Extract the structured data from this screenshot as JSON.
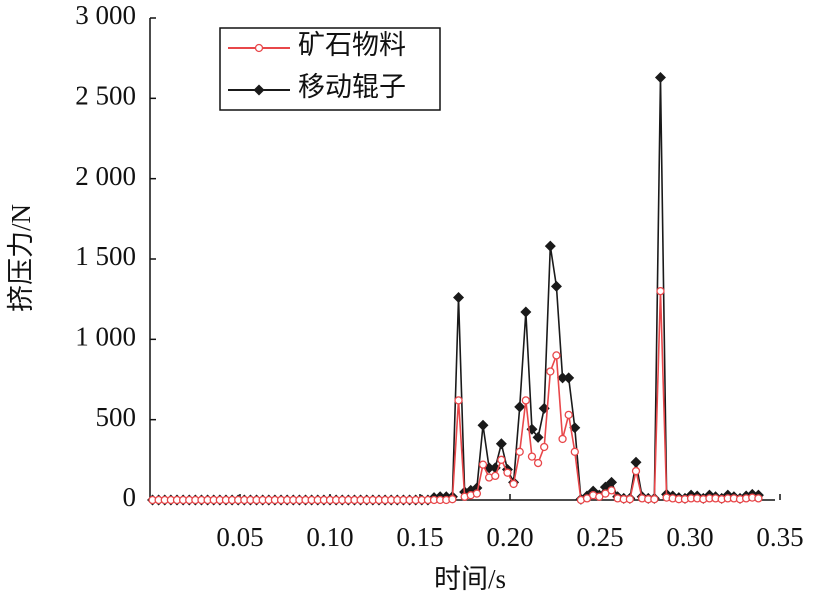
{
  "chart_data": {
    "type": "line",
    "x_label": "时间/s",
    "y_label": "挤压力/N",
    "xlim": [
      0,
      0.35
    ],
    "ylim": [
      0,
      3000
    ],
    "xticks": [
      0.05,
      {
        "value": 0.1,
        "label": "0.10"
      },
      0.15,
      {
        "value": 0.2,
        "label": "0.20"
      },
      0.25,
      {
        "value": 0.3,
        "label": "0.30"
      },
      0.35
    ],
    "yticks": [
      0,
      500,
      {
        "value": 1000,
        "label": "1 000"
      },
      {
        "value": 1500,
        "label": "1 500"
      },
      {
        "value": 2000,
        "label": "2 000"
      },
      {
        "value": 2500,
        "label": "2 500"
      },
      {
        "value": 3000,
        "label": "3 000"
      }
    ],
    "legend": "top-left",
    "x": [
      0.0014,
      0.0048,
      0.0082,
      0.0116,
      0.015,
      0.0184,
      0.0218,
      0.0252,
      0.0286,
      0.032,
      0.0354,
      0.0388,
      0.0422,
      0.0456,
      0.049,
      0.0524,
      0.0558,
      0.0592,
      0.0626,
      0.066,
      0.0694,
      0.0728,
      0.0762,
      0.0796,
      0.083,
      0.0864,
      0.0898,
      0.0932,
      0.0966,
      0.1,
      0.1034,
      0.1068,
      0.1102,
      0.1136,
      0.117,
      0.1204,
      0.1238,
      0.1272,
      0.1306,
      0.134,
      0.1374,
      0.1408,
      0.1442,
      0.1476,
      0.151,
      0.1544,
      0.1578,
      0.1612,
      0.1646,
      0.168,
      0.1714,
      0.1748,
      0.1782,
      0.1816,
      0.185,
      0.1884,
      0.1918,
      0.1952,
      0.1986,
      0.202,
      0.2054,
      0.2088,
      0.2122,
      0.2156,
      0.219,
      0.2224,
      0.2258,
      0.2292,
      0.2326,
      0.236,
      0.2394,
      0.2428,
      0.2462,
      0.2496,
      0.253,
      0.2564,
      0.2598,
      0.2632,
      0.2666,
      0.27,
      0.2734,
      0.2768,
      0.2802,
      0.2836,
      0.287,
      0.2904,
      0.2938,
      0.2972,
      0.3006,
      0.304,
      0.3074,
      0.3108,
      0.3142,
      0.3176,
      0.321,
      0.3244,
      0.3278,
      0.3312,
      0.3346,
      0.338
    ],
    "series": [
      {
        "name": "矿石物料",
        "color": "#e8474a",
        "marker": "circle",
        "values": [
          0,
          0,
          0,
          0,
          0,
          0,
          0,
          0,
          0,
          0,
          0,
          0,
          0,
          0,
          0,
          0,
          0,
          0,
          0,
          0,
          0,
          0,
          0,
          0,
          0,
          0,
          0,
          0,
          0,
          0,
          0,
          0,
          0,
          0,
          0,
          0,
          0,
          0,
          0,
          0,
          0,
          0,
          0,
          0,
          0,
          0,
          0,
          0,
          0,
          5,
          620,
          20,
          30,
          40,
          220,
          140,
          150,
          250,
          170,
          100,
          300,
          620,
          270,
          230,
          330,
          800,
          900,
          380,
          530,
          300,
          0,
          10,
          30,
          20,
          40,
          60,
          10,
          5,
          5,
          180,
          10,
          5,
          5,
          1300,
          15,
          10,
          5,
          5,
          10,
          10,
          5,
          10,
          10,
          5,
          10,
          10,
          5,
          10,
          15,
          10
        ]
      },
      {
        "name": "移动辊子",
        "color": "#1a1a1a",
        "marker": "diamond",
        "values": [
          0,
          0,
          0,
          0,
          0,
          0,
          0,
          0,
          0,
          0,
          0,
          0,
          0,
          0,
          0,
          0,
          0,
          0,
          0,
          0,
          0,
          0,
          0,
          0,
          0,
          0,
          0,
          0,
          0,
          0,
          0,
          0,
          0,
          0,
          0,
          0,
          0,
          0,
          0,
          0,
          0,
          0,
          0,
          0,
          0,
          0,
          15,
          20,
          20,
          20,
          1260,
          50,
          60,
          75,
          465,
          200,
          200,
          350,
          190,
          110,
          580,
          1170,
          440,
          390,
          570,
          1580,
          1330,
          760,
          760,
          450,
          5,
          25,
          55,
          30,
          80,
          110,
          20,
          10,
          10,
          235,
          20,
          10,
          10,
          2630,
          35,
          25,
          15,
          10,
          30,
          25,
          10,
          30,
          20,
          10,
          30,
          20,
          10,
          25,
          35,
          30
        ]
      }
    ]
  }
}
